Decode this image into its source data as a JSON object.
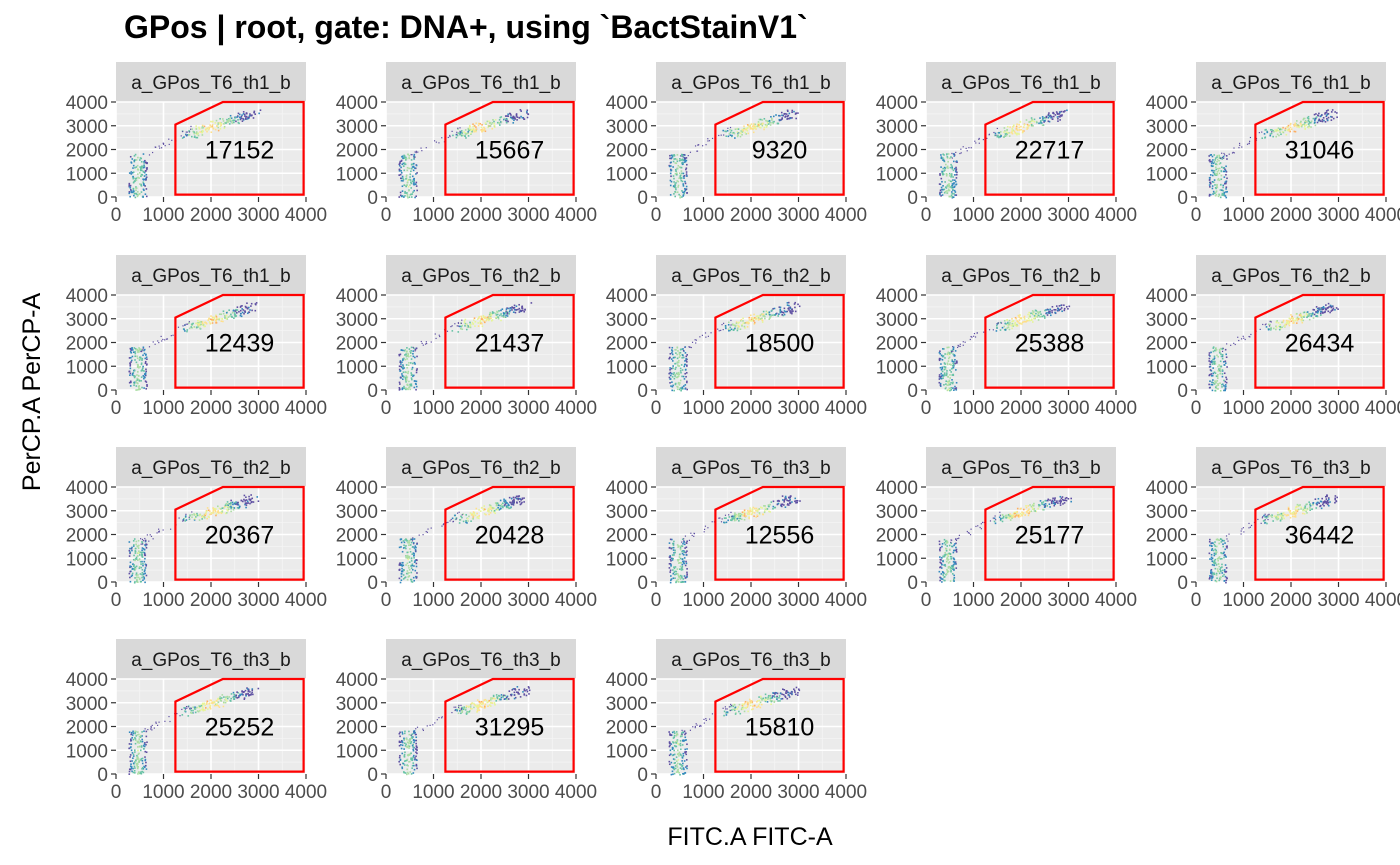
{
  "title": "GPos  |  root, gate: DNA+, using `BactStainV1`",
  "chart_data": {
    "type": "scatter",
    "xlabel": "FITC.A FITC-A",
    "ylabel": "PerCP.A PerCP-A",
    "xlim": [
      0,
      4000
    ],
    "ylim": [
      0,
      4000
    ],
    "x_ticks": [
      "0",
      "1000",
      "2000",
      "3000",
      "4000"
    ],
    "y_ticks": [
      "0",
      "1000",
      "2000",
      "3000",
      "4000"
    ],
    "grid": true,
    "gate_color": "#ff0000",
    "gate_polygon": [
      [
        1250,
        100
      ],
      [
        1250,
        3050
      ],
      [
        2250,
        4000
      ],
      [
        3950,
        4000
      ],
      [
        3950,
        100
      ]
    ],
    "panels": [
      {
        "strip": "a_GPos_T6_th1_b",
        "count": "17152"
      },
      {
        "strip": "a_GPos_T6_th1_b",
        "count": "15667"
      },
      {
        "strip": "a_GPos_T6_th1_b",
        "count": "9320"
      },
      {
        "strip": "a_GPos_T6_th1_b",
        "count": "22717"
      },
      {
        "strip": "a_GPos_T6_th1_b",
        "count": "31046"
      },
      {
        "strip": "a_GPos_T6_th1_b",
        "count": "12439"
      },
      {
        "strip": "a_GPos_T6_th2_b",
        "count": "21437"
      },
      {
        "strip": "a_GPos_T6_th2_b",
        "count": "18500"
      },
      {
        "strip": "a_GPos_T6_th2_b",
        "count": "25388"
      },
      {
        "strip": "a_GPos_T6_th2_b",
        "count": "26434"
      },
      {
        "strip": "a_GPos_T6_th2_b",
        "count": "20367"
      },
      {
        "strip": "a_GPos_T6_th2_b",
        "count": "20428"
      },
      {
        "strip": "a_GPos_T6_th3_b",
        "count": "12556"
      },
      {
        "strip": "a_GPos_T6_th3_b",
        "count": "25177"
      },
      {
        "strip": "a_GPos_T6_th3_b",
        "count": "36442"
      },
      {
        "strip": "a_GPos_T6_th3_b",
        "count": "25252"
      },
      {
        "strip": "a_GPos_T6_th3_b",
        "count": "31295"
      },
      {
        "strip": "a_GPos_T6_th3_b",
        "count": "15810"
      }
    ]
  }
}
